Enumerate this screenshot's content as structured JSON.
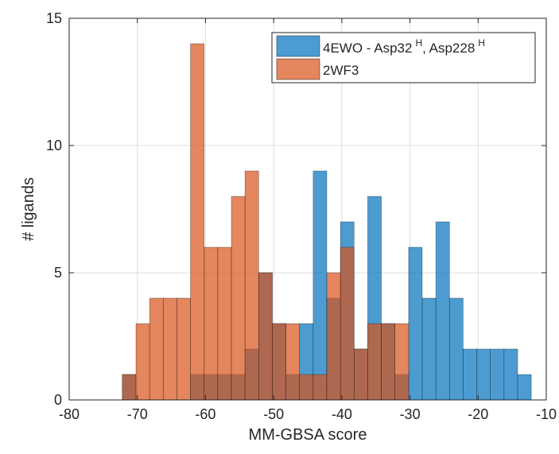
{
  "chart_data": {
    "type": "bar",
    "xlabel": "MM-GBSA score",
    "ylabel": "# ligands",
    "xlim": [
      -80,
      -10
    ],
    "ylim": [
      0,
      15
    ],
    "xticks": [
      -80,
      -70,
      -60,
      -50,
      -40,
      -30,
      -20,
      -10
    ],
    "yticks": [
      0,
      5,
      10,
      15
    ],
    "xtick_labels": [
      "-80",
      "-70",
      "-60",
      "-50",
      "-40",
      "-30",
      "-20",
      "-10"
    ],
    "ytick_labels": [
      "0",
      "5",
      "10",
      "15"
    ],
    "grid": true,
    "legend_position": "top-right",
    "series": [
      {
        "name": "4EWO - Asp32 H, Asp228 H",
        "legend_base": "4EWO - Asp32",
        "legend_sup1": "H",
        "legend_mid": ", Asp228",
        "legend_sup2": "H",
        "color": "#0072BD",
        "bins": [
          {
            "x0": -72.2,
            "x1": -70.2,
            "value": 1
          },
          {
            "x0": -62.2,
            "x1": -60.2,
            "value": 1
          },
          {
            "x0": -60.2,
            "x1": -58.2,
            "value": 1
          },
          {
            "x0": -58.2,
            "x1": -56.2,
            "value": 1
          },
          {
            "x0": -56.2,
            "x1": -54.2,
            "value": 1
          },
          {
            "x0": -54.2,
            "x1": -52.2,
            "value": 2
          },
          {
            "x0": -52.2,
            "x1": -50.2,
            "value": 5
          },
          {
            "x0": -50.2,
            "x1": -48.2,
            "value": 3
          },
          {
            "x0": -48.2,
            "x1": -46.2,
            "value": 1
          },
          {
            "x0": -46.2,
            "x1": -44.2,
            "value": 3
          },
          {
            "x0": -44.2,
            "x1": -42.2,
            "value": 9
          },
          {
            "x0": -42.2,
            "x1": -40.2,
            "value": 4
          },
          {
            "x0": -40.2,
            "x1": -38.2,
            "value": 7
          },
          {
            "x0": -38.2,
            "x1": -36.2,
            "value": 2
          },
          {
            "x0": -36.2,
            "x1": -34.2,
            "value": 8
          },
          {
            "x0": -34.2,
            "x1": -32.2,
            "value": 3
          },
          {
            "x0": -32.2,
            "x1": -30.2,
            "value": 1
          },
          {
            "x0": -30.2,
            "x1": -28.2,
            "value": 6
          },
          {
            "x0": -28.2,
            "x1": -26.2,
            "value": 4
          },
          {
            "x0": -26.2,
            "x1": -24.2,
            "value": 7
          },
          {
            "x0": -24.2,
            "x1": -22.2,
            "value": 4
          },
          {
            "x0": -22.2,
            "x1": -20.2,
            "value": 2
          },
          {
            "x0": -20.2,
            "x1": -18.2,
            "value": 2
          },
          {
            "x0": -18.2,
            "x1": -16.2,
            "value": 2
          },
          {
            "x0": -16.2,
            "x1": -14.2,
            "value": 2
          },
          {
            "x0": -14.2,
            "x1": -12.2,
            "value": 1
          }
        ]
      },
      {
        "name": "2WF3",
        "color": "#D95319",
        "bins": [
          {
            "x0": -74.2,
            "x1": -72.2,
            "value": 0
          },
          {
            "x0": -72.2,
            "x1": -70.2,
            "value": 1
          },
          {
            "x0": -70.2,
            "x1": -68.2,
            "value": 3
          },
          {
            "x0": -68.2,
            "x1": -66.2,
            "value": 4
          },
          {
            "x0": -66.2,
            "x1": -64.2,
            "value": 4
          },
          {
            "x0": -64.2,
            "x1": -62.2,
            "value": 4
          },
          {
            "x0": -62.2,
            "x1": -60.2,
            "value": 14
          },
          {
            "x0": -60.2,
            "x1": -58.2,
            "value": 6
          },
          {
            "x0": -58.2,
            "x1": -56.2,
            "value": 6
          },
          {
            "x0": -56.2,
            "x1": -54.2,
            "value": 8
          },
          {
            "x0": -54.2,
            "x1": -52.2,
            "value": 9
          },
          {
            "x0": -52.2,
            "x1": -50.2,
            "value": 5
          },
          {
            "x0": -50.2,
            "x1": -48.2,
            "value": 3
          },
          {
            "x0": -48.2,
            "x1": -46.2,
            "value": 3
          },
          {
            "x0": -46.2,
            "x1": -44.2,
            "value": 1
          },
          {
            "x0": -44.2,
            "x1": -42.2,
            "value": 1
          },
          {
            "x0": -42.2,
            "x1": -40.2,
            "value": 5
          },
          {
            "x0": -40.2,
            "x1": -38.2,
            "value": 6
          },
          {
            "x0": -38.2,
            "x1": -36.2,
            "value": 2
          },
          {
            "x0": -36.2,
            "x1": -34.2,
            "value": 3
          },
          {
            "x0": -34.2,
            "x1": -32.2,
            "value": 3
          },
          {
            "x0": -32.2,
            "x1": -30.2,
            "value": 3
          }
        ]
      }
    ]
  }
}
